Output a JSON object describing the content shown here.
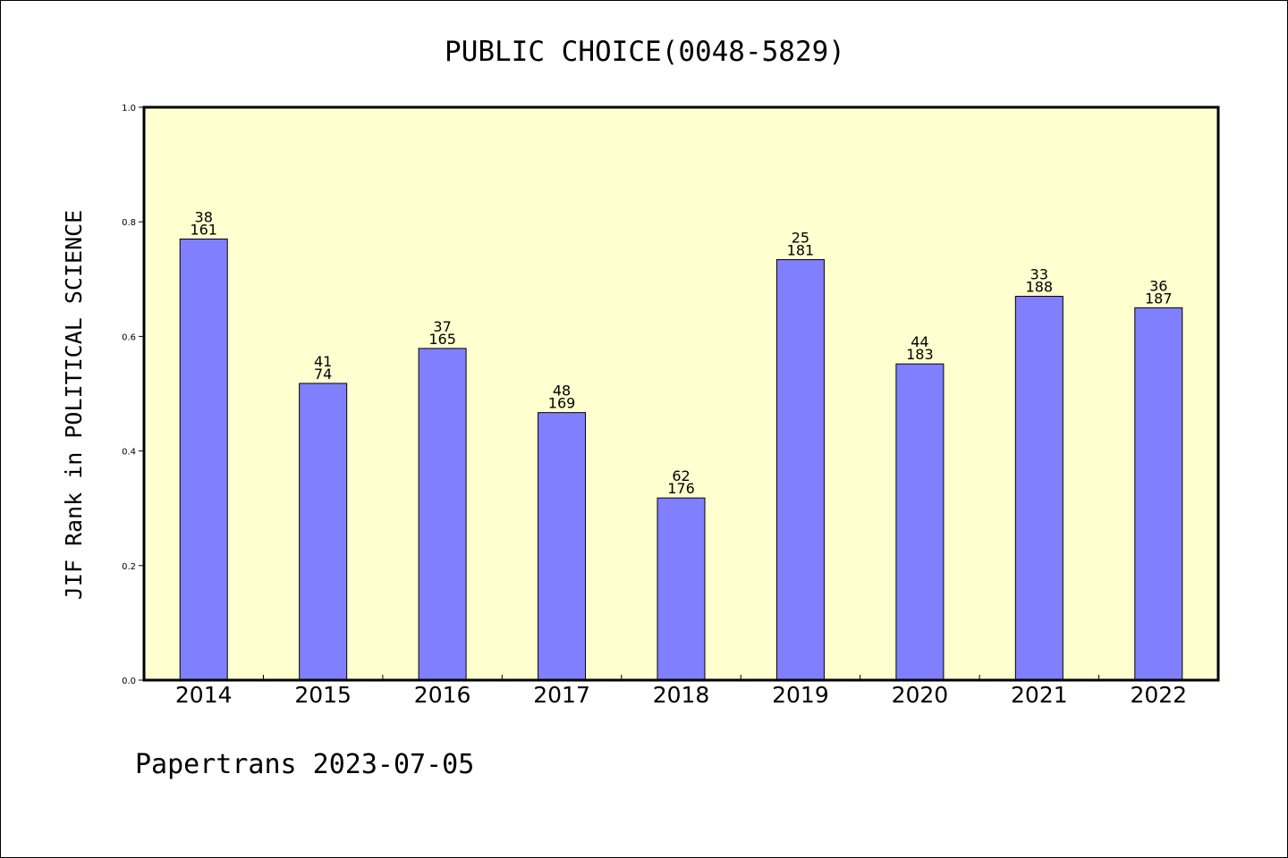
{
  "chart_data": {
    "type": "bar",
    "title": "PUBLIC CHOICE(0048-5829)",
    "ylabel": "JIF Rank in POLITICAL SCIENCE",
    "xlabel": "",
    "ylim": [
      0,
      1.0
    ],
    "yticks": [
      "0.0",
      "0.2",
      "0.4",
      "0.6",
      "0.8",
      "1.0"
    ],
    "categories": [
      "2014",
      "2015",
      "2016",
      "2017",
      "2018",
      "2019",
      "2020",
      "2021",
      "2022"
    ],
    "values": [
      0.77,
      0.518,
      0.579,
      0.467,
      0.318,
      0.734,
      0.552,
      0.67,
      0.65
    ],
    "ranks": [
      "38",
      "41",
      "37",
      "48",
      "62",
      "25",
      "44",
      "33",
      "36"
    ],
    "totals": [
      "161",
      "74",
      "165",
      "169",
      "176",
      "181",
      "183",
      "188",
      "187"
    ],
    "grid": false,
    "colors": {
      "plot_background": "#FFFFD0",
      "bar_fill": "#8080FF",
      "bar_stroke": "#000000"
    }
  },
  "footer": {
    "text": "Papertrans 2023-07-05"
  }
}
